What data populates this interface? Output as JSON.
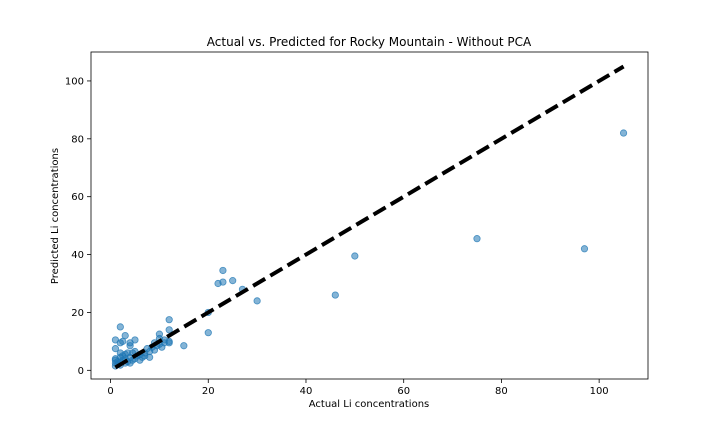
{
  "chart_data": {
    "type": "scatter",
    "title": "Actual vs. Predicted for Rocky Mountain - Without PCA",
    "xlabel": "Actual Li concentrations",
    "ylabel": "Predicted Li concentrations",
    "xlim": [
      -4,
      110
    ],
    "ylim": [
      -3,
      110
    ],
    "xticks": [
      0,
      20,
      40,
      60,
      80,
      100
    ],
    "yticks": [
      0,
      20,
      40,
      60,
      80,
      100
    ],
    "grid": false,
    "point_color": "#1f77b4",
    "identity_line": {
      "x": [
        1,
        105
      ],
      "y": [
        1,
        105
      ],
      "color": "#000000",
      "style": "dashed"
    },
    "points": [
      {
        "x": 1,
        "y": 1.5
      },
      {
        "x": 1,
        "y": 2.5
      },
      {
        "x": 1,
        "y": 3.5
      },
      {
        "x": 1,
        "y": 4
      },
      {
        "x": 1,
        "y": 10.5
      },
      {
        "x": 1,
        "y": 7.5
      },
      {
        "x": 1.5,
        "y": 2
      },
      {
        "x": 1.5,
        "y": 3
      },
      {
        "x": 2,
        "y": 1.8
      },
      {
        "x": 2,
        "y": 2.8
      },
      {
        "x": 2,
        "y": 4.5
      },
      {
        "x": 2,
        "y": 6
      },
      {
        "x": 2,
        "y": 15
      },
      {
        "x": 2,
        "y": 9.5
      },
      {
        "x": 2.5,
        "y": 3.5
      },
      {
        "x": 2.5,
        "y": 5
      },
      {
        "x": 2.5,
        "y": 10
      },
      {
        "x": 3,
        "y": 2.5
      },
      {
        "x": 3,
        "y": 5.5
      },
      {
        "x": 3,
        "y": 12
      },
      {
        "x": 3,
        "y": 4
      },
      {
        "x": 3.5,
        "y": 3
      },
      {
        "x": 3.5,
        "y": 6
      },
      {
        "x": 4,
        "y": 2.5
      },
      {
        "x": 4,
        "y": 4.5
      },
      {
        "x": 4,
        "y": 8.5
      },
      {
        "x": 4,
        "y": 9.5
      },
      {
        "x": 4.5,
        "y": 6
      },
      {
        "x": 4.5,
        "y": 3.5
      },
      {
        "x": 5,
        "y": 4
      },
      {
        "x": 5,
        "y": 10.5
      },
      {
        "x": 5,
        "y": 6.5
      },
      {
        "x": 5.5,
        "y": 5
      },
      {
        "x": 6,
        "y": 3.5
      },
      {
        "x": 6,
        "y": 5.5
      },
      {
        "x": 6.5,
        "y": 4.5
      },
      {
        "x": 7,
        "y": 6
      },
      {
        "x": 7,
        "y": 5
      },
      {
        "x": 7.5,
        "y": 7.5
      },
      {
        "x": 8,
        "y": 4.5
      },
      {
        "x": 8,
        "y": 6.5
      },
      {
        "x": 8.5,
        "y": 8
      },
      {
        "x": 9,
        "y": 7
      },
      {
        "x": 9,
        "y": 9.5
      },
      {
        "x": 9.5,
        "y": 8.5
      },
      {
        "x": 10,
        "y": 9
      },
      {
        "x": 10,
        "y": 11
      },
      {
        "x": 10,
        "y": 12.5
      },
      {
        "x": 10.5,
        "y": 8
      },
      {
        "x": 11,
        "y": 9.5
      },
      {
        "x": 11,
        "y": 10.5
      },
      {
        "x": 12,
        "y": 9.5
      },
      {
        "x": 12,
        "y": 14
      },
      {
        "x": 12,
        "y": 17.5
      },
      {
        "x": 12,
        "y": 10
      },
      {
        "x": 15,
        "y": 8.5
      },
      {
        "x": 20,
        "y": 20
      },
      {
        "x": 20,
        "y": 13
      },
      {
        "x": 22,
        "y": 30
      },
      {
        "x": 23,
        "y": 34.5
      },
      {
        "x": 23,
        "y": 30.5
      },
      {
        "x": 25,
        "y": 31
      },
      {
        "x": 27,
        "y": 28
      },
      {
        "x": 30,
        "y": 24
      },
      {
        "x": 46,
        "y": 26
      },
      {
        "x": 50,
        "y": 39.5
      },
      {
        "x": 75,
        "y": 45.5
      },
      {
        "x": 97,
        "y": 42
      },
      {
        "x": 105,
        "y": 82
      }
    ]
  }
}
